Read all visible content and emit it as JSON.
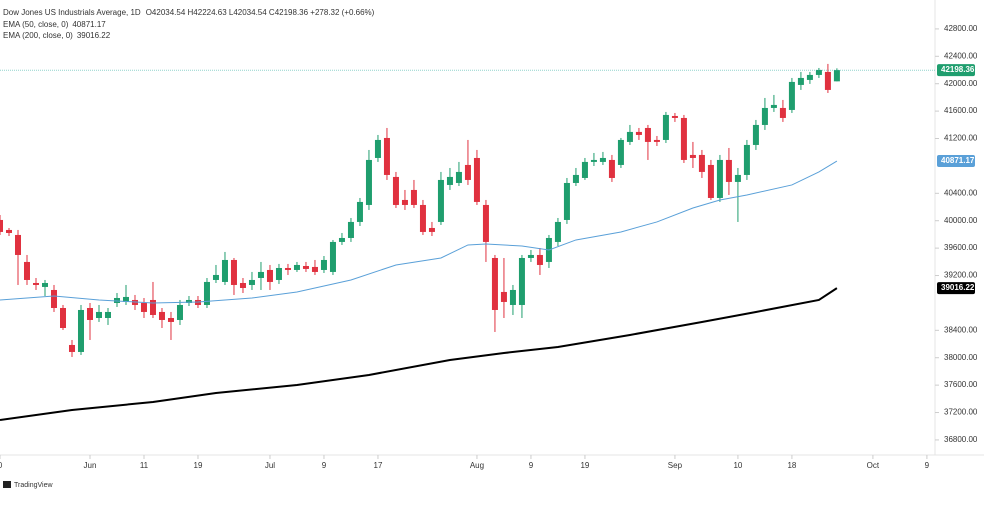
{
  "chart_data": {
    "type": "candlestick",
    "title": "Dow Jones US Industrials Average, 1D",
    "ohlc_legend": "O42034.54 H42224.63 L42034.54 C42198.36 +278.32 (+0.66%)",
    "brand": "TradingView",
    "up_color": "#1f9e6e",
    "down_color": "#e0313f",
    "open": [
      40011,
      39865,
      39792,
      39398,
      39091,
      39033,
      38989,
      38726,
      38186,
      38084,
      38726,
      38580,
      38580,
      38799,
      38814,
      38843,
      38799,
      38843,
      38668,
      38580,
      38551,
      38799,
      38843,
      38770,
      39135,
      39106,
      39427,
      39091,
      39062,
      39164,
      39281,
      39135,
      39310,
      39281,
      39339,
      39325,
      39281,
      39252,
      39690,
      39748,
      39982,
      40230,
      40916,
      41208,
      40639,
      40303,
      40449,
      40230,
      39894,
      39982,
      40522,
      40551,
      40814,
      40916,
      40230,
      39456,
      38960,
      38770,
      38770,
      39456,
      39500,
      39398,
      39690,
      40011,
      40551,
      40624,
      40858,
      40858,
      40887,
      40814,
      41150,
      41296,
      41354,
      41179,
      41179,
      41529,
      41500,
      40960,
      40960,
      40814,
      40332,
      40887,
      40566,
      40668,
      41106,
      41398,
      41646,
      41646,
      41617,
      41982,
      42055,
      42128,
      42172,
      42034.54
    ],
    "high": [
      40084,
      39894,
      39865,
      39500,
      39164,
      39135,
      39062,
      38770,
      38259,
      38770,
      38799,
      38770,
      38726,
      38945,
      39062,
      38916,
      38872,
      39106,
      38726,
      38668,
      38843,
      38901,
      38901,
      39164,
      39354,
      39544,
      39456,
      39164,
      39252,
      39398,
      39354,
      39369,
      39369,
      39398,
      39398,
      39427,
      39485,
      39719,
      39821,
      40040,
      40332,
      41033,
      41252,
      41354,
      40712,
      40449,
      40595,
      40303,
      39982,
      40712,
      40770,
      40858,
      41179,
      41033,
      40303,
      39500,
      39456,
      39062,
      39500,
      39573,
      39602,
      39792,
      40040,
      40624,
      40770,
      40916,
      40989,
      41004,
      40960,
      41208,
      41398,
      41354,
      41398,
      41237,
      41588,
      41573,
      41544,
      41150,
      41033,
      40887,
      40960,
      41062,
      40770,
      41179,
      41471,
      41792,
      41836,
      41763,
      42084,
      42172,
      42172,
      42230,
      42289,
      42224.63
    ],
    "low": [
      39792,
      39777,
      39062,
      39062,
      38989,
      38901,
      38668,
      38405,
      38011,
      38040,
      38259,
      38522,
      38478,
      38741,
      38770,
      38697,
      38580,
      38580,
      38434,
      38259,
      38478,
      38755,
      38726,
      38726,
      39091,
      39062,
      38916,
      38945,
      38989,
      38989,
      38989,
      39077,
      39208,
      39252,
      39252,
      39208,
      39237,
      39208,
      39646,
      39690,
      39923,
      40157,
      40858,
      40595,
      40186,
      40157,
      40186,
      39792,
      39777,
      39938,
      40449,
      40507,
      40522,
      40230,
      39398,
      38376,
      38580,
      38624,
      38580,
      39398,
      39208,
      39310,
      39631,
      39953,
      40507,
      40595,
      40799,
      40814,
      40566,
      40770,
      41106,
      41179,
      40887,
      41091,
      41135,
      41442,
      40843,
      40770,
      40624,
      40303,
      40274,
      40376,
      39982,
      40595,
      41033,
      41325,
      41588,
      41442,
      41573,
      41909,
      41997,
      42084,
      41865,
      42034.54
    ],
    "close": [
      39836,
      39821,
      39500,
      39135,
      39062,
      39091,
      38726,
      38434,
      38084,
      38697,
      38551,
      38668,
      38668,
      38872,
      38887,
      38770,
      38668,
      38624,
      38551,
      38522,
      38770,
      38843,
      38770,
      39106,
      39208,
      39427,
      39062,
      39018,
      39135,
      39252,
      39106,
      39310,
      39281,
      39354,
      39296,
      39252,
      39427,
      39690,
      39748,
      39982,
      40274,
      40887,
      41179,
      40668,
      40230,
      40230,
      40230,
      39836,
      39836,
      40595,
      40639,
      40712,
      40595,
      40274,
      39690,
      38697,
      38814,
      38989,
      39456,
      39500,
      39354,
      39748,
      39982,
      40551,
      40668,
      40858,
      40887,
      40916,
      40624,
      41179,
      41296,
      41252,
      41150,
      41150,
      41544,
      41500,
      40887,
      40916,
      40712,
      40332,
      40887,
      40566,
      40668,
      41106,
      41398,
      41646,
      41690,
      41500,
      42026,
      42084,
      42128,
      42201,
      41909,
      42198.36
    ],
    "series": [
      {
        "name": "EMA (50, close, 0)",
        "color": "#5aa0d8",
        "x": [
          0,
          6,
          11,
          17,
          22,
          28,
          33,
          39,
          44,
          49,
          52,
          54,
          58,
          61,
          64,
          69,
          73,
          77,
          80,
          83,
          88,
          91,
          93
        ],
        "values": [
          38843,
          38901,
          38843,
          38799,
          38814,
          38872,
          38960,
          39135,
          39354,
          39456,
          39646,
          39660,
          39631,
          39573,
          39719,
          39836,
          39982,
          40186,
          40303,
          40376,
          40522,
          40712,
          40871.17
        ]
      },
      {
        "name": "EMA (200, close, 0)",
        "color": "#000000",
        "x": [
          0,
          8,
          17,
          24,
          33,
          41,
          50,
          56,
          62,
          70,
          78,
          84,
          91,
          93
        ],
        "values": [
          37091,
          37237,
          37354,
          37485,
          37602,
          37748,
          37967,
          38069,
          38157,
          38332,
          38522,
          38668,
          38843,
          39016.22
        ]
      }
    ],
    "xlim": [
      0,
      103.9
    ],
    "xticks": [
      {
        "value": 0,
        "label": "0"
      },
      {
        "value": 10,
        "label": "Jun"
      },
      {
        "value": 16,
        "label": "11"
      },
      {
        "value": 22,
        "label": "19"
      },
      {
        "value": 30,
        "label": "Jul"
      },
      {
        "value": 36,
        "label": "9"
      },
      {
        "value": 42,
        "label": "17"
      },
      {
        "value": 53,
        "label": "Aug"
      },
      {
        "value": 59,
        "label": "9"
      },
      {
        "value": 65,
        "label": "19"
      },
      {
        "value": 75,
        "label": "Sep"
      },
      {
        "value": 82,
        "label": "10"
      },
      {
        "value": 88,
        "label": "18"
      },
      {
        "value": 97,
        "label": "Oct"
      },
      {
        "value": 103,
        "label": "9"
      }
    ],
    "ylim": [
      36580,
      42930
    ],
    "yticks": [
      {
        "value": 36800,
        "label": "36800.00"
      },
      {
        "value": 37200,
        "label": "37200.00"
      },
      {
        "value": 37600,
        "label": "37600.00"
      },
      {
        "value": 38000,
        "label": "38000.00"
      },
      {
        "value": 38400,
        "label": "38400.00"
      },
      {
        "value": 39200,
        "label": "39200.00"
      },
      {
        "value": 39600,
        "label": "39600.00"
      },
      {
        "value": 40000,
        "label": "40000.00"
      },
      {
        "value": 40400,
        "label": "40400.00"
      },
      {
        "value": 41200,
        "label": "41200.00"
      },
      {
        "value": 41600,
        "label": "41600.00"
      },
      {
        "value": 42000,
        "label": "42000.00"
      },
      {
        "value": 42400,
        "label": "42400.00"
      },
      {
        "value": 42800,
        "label": "42800.00"
      }
    ],
    "price_line_color": "#26a69a"
  }
}
